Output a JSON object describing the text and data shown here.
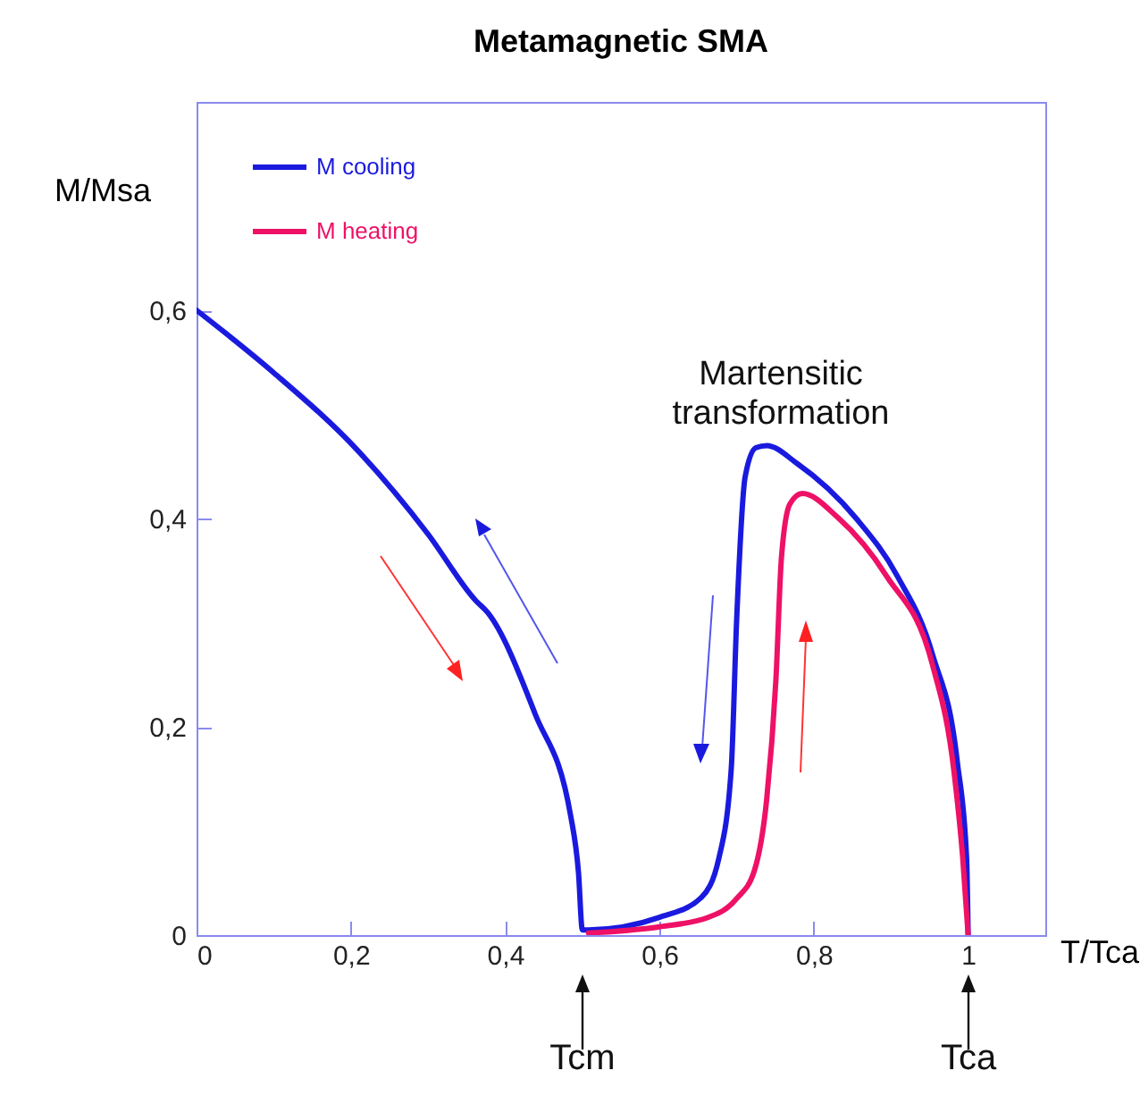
{
  "chart_data": {
    "type": "line",
    "title": "Metamagnetic SMA",
    "xlabel": "T/Tca",
    "ylabel": "M/Msa",
    "xlim": [
      0,
      1.1
    ],
    "ylim": [
      0,
      0.8
    ],
    "xticks": [
      0,
      {
        "value": 0.2,
        "label": "0,2"
      },
      {
        "value": 0.4,
        "label": "0,4"
      },
      {
        "value": 0.6,
        "label": "0,6"
      },
      {
        "value": 0.8,
        "label": "0,8"
      },
      1
    ],
    "yticks": [
      0,
      {
        "value": 0.2,
        "label": "0,2"
      },
      {
        "value": 0.4,
        "label": "0,4"
      },
      {
        "value": 0.6,
        "label": "0,6"
      }
    ],
    "legend": "top left",
    "grid": false,
    "marker": "none",
    "line_style": "solid",
    "series": [
      {
        "name": "M cooling",
        "color": "#1a1adf",
        "x": [
          0,
          0.1,
          0.208,
          0.3,
          0.362,
          0.377,
          0.439,
          0.485,
          0.495,
          0.5,
          0.508,
          0.6,
          0.654,
          0.677,
          0.693,
          0.7,
          0.711,
          0.725,
          0.739,
          0.778,
          0.855,
          0.908,
          0.954,
          0.986,
          0.998,
          1.0
        ],
        "values": [
          0.6,
          0.54,
          0.466,
          0.385,
          0.321,
          0.31,
          0.212,
          0.114,
          0.06,
          0.005,
          0.005,
          0.017,
          0.036,
          0.074,
          0.16,
          0.303,
          0.44,
          0.468,
          0.47,
          0.453,
          0.4,
          0.345,
          0.269,
          0.166,
          0.074,
          0
        ]
      },
      {
        "name": "M heating",
        "color": "#ee1166",
        "x": [
          0.508,
          0.6,
          0.663,
          0.7,
          0.723,
          0.739,
          0.751,
          0.758,
          0.769,
          0.785,
          0.831,
          0.894,
          0.954,
          0.982,
          0.993,
          1.0
        ],
        "values": [
          0.002,
          0.008,
          0.017,
          0.035,
          0.062,
          0.131,
          0.247,
          0.362,
          0.414,
          0.424,
          0.401,
          0.345,
          0.259,
          0.155,
          0.074,
          0
        ]
      }
    ],
    "annotations": [
      "Martensitic transformation",
      "Tcm",
      "Tca"
    ]
  }
}
